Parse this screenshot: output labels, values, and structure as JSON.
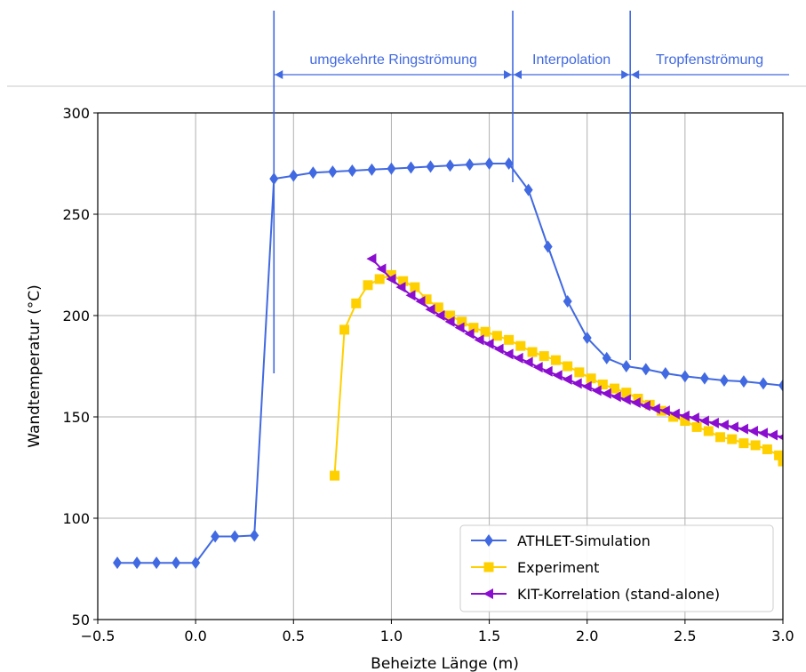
{
  "chart_data": {
    "type": "line",
    "xlabel": "Beheizte Länge (m)",
    "ylabel": "Wandtemperatur (°C)",
    "xlim": [
      -0.5,
      3.0
    ],
    "ylim": [
      50,
      300
    ],
    "xticks": [
      -0.5,
      0.0,
      0.5,
      1.0,
      1.5,
      2.0,
      2.5,
      3.0
    ],
    "xtick_labels": [
      "−0.5",
      "0.0",
      "0.5",
      "1.0",
      "1.5",
      "2.0",
      "2.5",
      "3.0"
    ],
    "yticks": [
      50,
      100,
      150,
      200,
      250,
      300
    ],
    "ytick_labels": [
      "50",
      "100",
      "150",
      "200",
      "250",
      "300"
    ],
    "grid": true,
    "legend_position": "bottom-right",
    "series": [
      {
        "name": "ATHLET-Simulation",
        "color": "#4169E1",
        "marker": "diamond",
        "x": [
          -0.4,
          -0.3,
          -0.2,
          -0.1,
          0.0,
          0.1,
          0.2,
          0.3,
          0.4,
          0.5,
          0.6,
          0.7,
          0.8,
          0.9,
          1.0,
          1.1,
          1.2,
          1.3,
          1.4,
          1.5,
          1.6,
          1.7,
          1.8,
          1.9,
          2.0,
          2.1,
          2.2,
          2.3,
          2.4,
          2.5,
          2.6,
          2.7,
          2.8,
          2.9,
          3.0
        ],
        "y": [
          78,
          78,
          78,
          78,
          78,
          91,
          91,
          91.5,
          267.5,
          269,
          270.5,
          271,
          271.5,
          272,
          272.5,
          273,
          273.5,
          274,
          274.5,
          275,
          275,
          262,
          234,
          207,
          189,
          179,
          175,
          173.5,
          171.5,
          170,
          169,
          168,
          167.5,
          166.5,
          165.5
        ]
      },
      {
        "name": "Experiment",
        "color": "#FFD000",
        "marker": "square",
        "x": [
          0.71,
          0.76,
          0.82,
          0.88,
          0.94,
          1.0,
          1.06,
          1.12,
          1.18,
          1.24,
          1.3,
          1.36,
          1.42,
          1.48,
          1.54,
          1.6,
          1.66,
          1.72,
          1.78,
          1.84,
          1.9,
          1.96,
          2.02,
          2.08,
          2.14,
          2.2,
          2.26,
          2.32,
          2.38,
          2.44,
          2.5,
          2.56,
          2.62,
          2.68,
          2.74,
          2.8,
          2.86,
          2.92,
          2.98,
          3.0
        ],
        "y": [
          121,
          193,
          206,
          215,
          218,
          220,
          217,
          214,
          208,
          204,
          200,
          197,
          194,
          192,
          190,
          188,
          185,
          182,
          180,
          178,
          175,
          172,
          169,
          166,
          164,
          162,
          159,
          156,
          153,
          150,
          148,
          145,
          143,
          140,
          139,
          137,
          136,
          134,
          131,
          128
        ]
      },
      {
        "name": "KIT-Korrelation (stand-alone)",
        "color": "#8A0DD0",
        "marker": "triangle-left",
        "x": [
          0.9,
          0.95,
          1.0,
          1.05,
          1.1,
          1.15,
          1.2,
          1.25,
          1.3,
          1.35,
          1.4,
          1.45,
          1.5,
          1.55,
          1.6,
          1.65,
          1.7,
          1.75,
          1.8,
          1.85,
          1.9,
          1.95,
          2.0,
          2.05,
          2.1,
          2.15,
          2.2,
          2.25,
          2.3,
          2.35,
          2.4,
          2.45,
          2.5,
          2.55,
          2.6,
          2.65,
          2.7,
          2.75,
          2.8,
          2.85,
          2.9,
          2.95,
          3.0
        ],
        "y": [
          228,
          223,
          218,
          214,
          210,
          207,
          203,
          200,
          197,
          194,
          191,
          188,
          186,
          183.5,
          181,
          179,
          177,
          174.5,
          172.5,
          170.5,
          168.5,
          166.5,
          165,
          163,
          161.5,
          160,
          158.5,
          157,
          155.5,
          154,
          153,
          151.5,
          150.5,
          149.5,
          148,
          147,
          146,
          145,
          144,
          143,
          142,
          141,
          140
        ]
      }
    ],
    "regions": [
      {
        "label": "umgekehrte Ringströmung",
        "x_start": 0.4,
        "x_end": 1.62
      },
      {
        "label": "Interpolation",
        "x_start": 1.62,
        "x_end": 2.22
      },
      {
        "label": "Tropfenströmung",
        "x_start": 2.22,
        "x_end": 3.0
      }
    ]
  }
}
